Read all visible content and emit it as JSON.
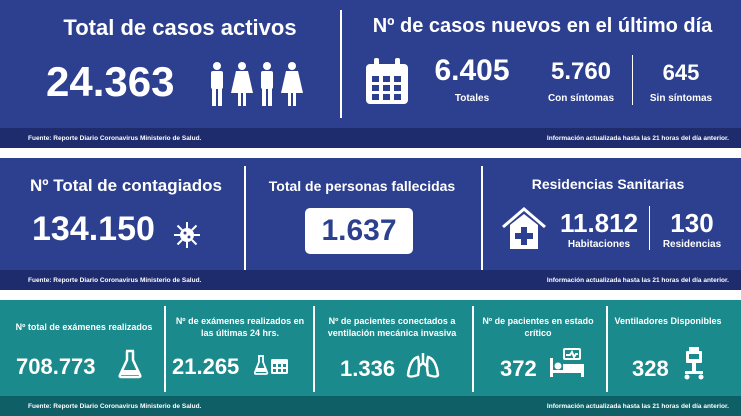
{
  "panel1": {
    "left": {
      "title": "Total de casos activos",
      "value": "24.363"
    },
    "right": {
      "title": "Nº de casos nuevos en el último día",
      "totales_value": "6.405",
      "totales_label": "Totales",
      "con_value": "5.760",
      "con_label": "Con síntomas",
      "sin_value": "645",
      "sin_label": "Sin síntomas"
    },
    "footer_left": "Fuente: Reporte Diario Coronavirus Ministerio de Salud.",
    "footer_right": "Información actualizada hasta las 21 horas  del día anterior."
  },
  "panel2": {
    "contagiados": {
      "title": "Nº Total de contagiados",
      "value": "134.150"
    },
    "fallecidas": {
      "title": "Total de personas fallecidas",
      "value": "1.637"
    },
    "residencias": {
      "title": "Residencias Sanitarias",
      "hab_value": "11.812",
      "hab_label": "Habitaciones",
      "res_value": "130",
      "res_label": "Residencias"
    },
    "footer_left": "Fuente: Reporte Diario Coronavirus Ministerio de Salud.",
    "footer_right": "Información actualizada hasta las 21 horas  del día anterior."
  },
  "panel3": {
    "cells": [
      {
        "label": "Nº total de exámenes realizados",
        "value": "708.773",
        "icon": "flask-icon"
      },
      {
        "label": "Nº de exámenes realizados en las últimas 24 hrs.",
        "value": "21.265",
        "icon": "flask-calendar-icon"
      },
      {
        "label": "Nº de pacientes conectados a ventilación mecánica invasiva",
        "value": "1.336",
        "icon": "lungs-icon"
      },
      {
        "label": "Nº de pacientes  en estado crítico",
        "value": "372",
        "icon": "hospital-bed-icon"
      },
      {
        "label": "Ventiladores Disponibles",
        "value": "328",
        "icon": "ventilator-icon"
      }
    ],
    "footer_left": "Fuente: Reporte Diario Coronavirus Ministerio de Salud.",
    "footer_right": "Información actualizada hasta las 21 horas  del día anterior."
  },
  "colors": {
    "blue": "#2d3f8f",
    "teal": "#1a8a8c",
    "footer_blue": "#1e2c6e",
    "footer_teal": "#0f5f66"
  }
}
